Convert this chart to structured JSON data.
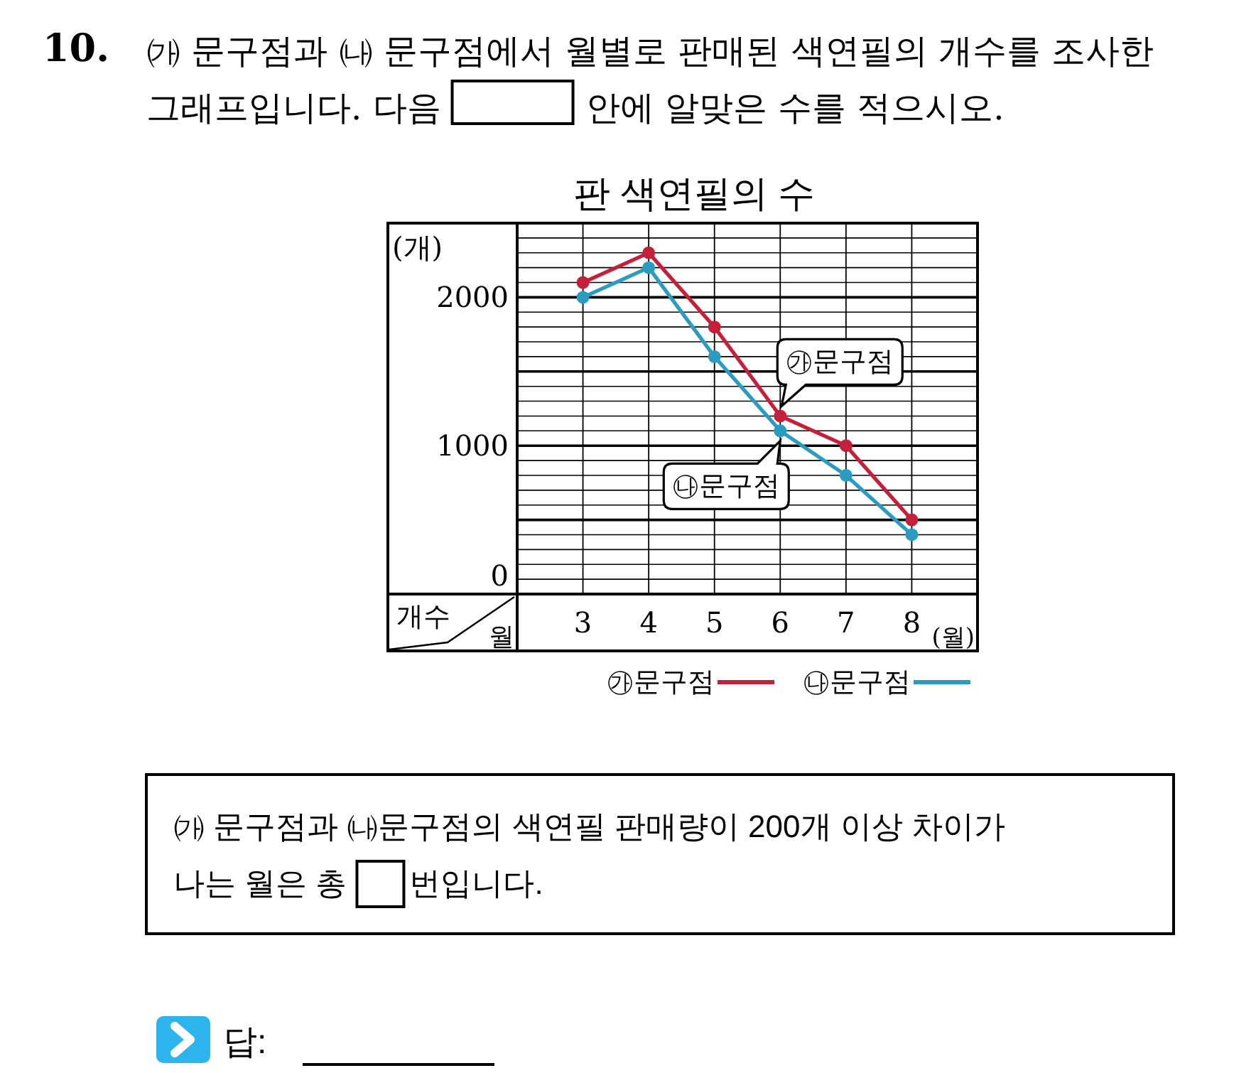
{
  "chart_data": {
    "type": "line",
    "title": "판 색연필의 수",
    "xlabel": "(월)",
    "ylabel": "(개)",
    "categories": [
      "3",
      "4",
      "5",
      "6",
      "7",
      "8"
    ],
    "series": [
      {
        "name": "㉮문구점",
        "color": "#c41f3b",
        "values": [
          2100,
          2300,
          1800,
          1200,
          1000,
          500
        ]
      },
      {
        "name": "㉯문구점",
        "color": "#2b9cc0",
        "values": [
          2000,
          2200,
          1600,
          1100,
          800,
          400
        ]
      }
    ],
    "ylim": [
      0,
      2500
    ],
    "yticks": [
      0,
      {
        "value": 100,
        "label": null
      },
      {
        "value": 200,
        "label": null
      },
      {
        "value": 300,
        "label": null
      },
      {
        "value": 400,
        "label": null
      },
      {
        "value": 500,
        "label": null
      },
      {
        "value": 600,
        "label": null
      },
      {
        "value": 700,
        "label": null
      },
      {
        "value": 800,
        "label": null
      },
      {
        "value": 900,
        "label": null
      },
      1000,
      {
        "value": 1100,
        "label": null
      },
      {
        "value": 1200,
        "label": null
      },
      {
        "value": 1300,
        "label": null
      },
      {
        "value": 1400,
        "label": null
      },
      {
        "value": 1500,
        "label": null
      },
      {
        "value": 1600,
        "label": null
      },
      {
        "value": 1700,
        "label": null
      },
      {
        "value": 1800,
        "label": null
      },
      {
        "value": 1900,
        "label": null
      },
      2000,
      {
        "value": 2100,
        "label": null
      },
      {
        "value": 2200,
        "label": null
      },
      {
        "value": 2300,
        "label": null
      },
      {
        "value": 2400,
        "label": null
      }
    ],
    "grid": true,
    "legend": "bottom right",
    "marker": "circle",
    "line_style": "solid",
    "annotations": [
      "10.",
      "㈎ 문구점과 ㈏ 문구점에서 월별로 판매된 색연필의 개수를 조사한",
      "그래프입니다. 다음",
      "안에 알맞은 수를 적으시오.",
      {
        "text": "㉮문구점",
        "x": "6",
        "y": 1200
      },
      {
        "text": "㉯문구점",
        "x": "6",
        "y": 1100
      },
      "개수",
      "월",
      "㈎ 문구점과 ㈏문구점의 색연필 판매량이 200개 이상 차이가",
      "나는 월은 총",
      "번입니다.",
      "답:"
    ]
  }
}
